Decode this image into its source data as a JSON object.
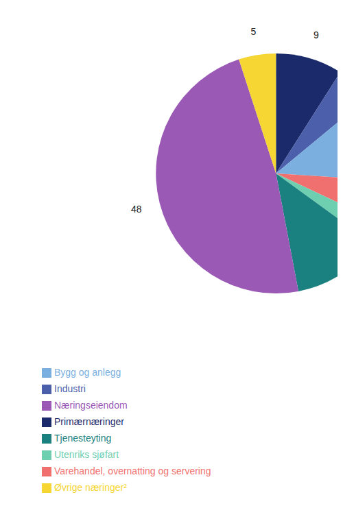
{
  "chart_data": {
    "type": "pie",
    "categories": [
      "Primærnæringer",
      "Industri",
      "Bygg og anlegg",
      "Varehandel, overnatting og servering",
      "Utenriks sjøfart",
      "Tjenesteyting",
      "Næringseiendom",
      "Øvrige næringer²"
    ],
    "values": [
      9,
      5,
      12,
      6,
      3,
      12,
      48,
      5
    ],
    "colors": [
      "#1b2a6b",
      "#4c5faa",
      "#7aafe0",
      "#f07070",
      "#6ecfb0",
      "#1a8080",
      "#9b59b6",
      "#f5d633"
    ],
    "data_labels": true,
    "legend": "bottom"
  }
}
